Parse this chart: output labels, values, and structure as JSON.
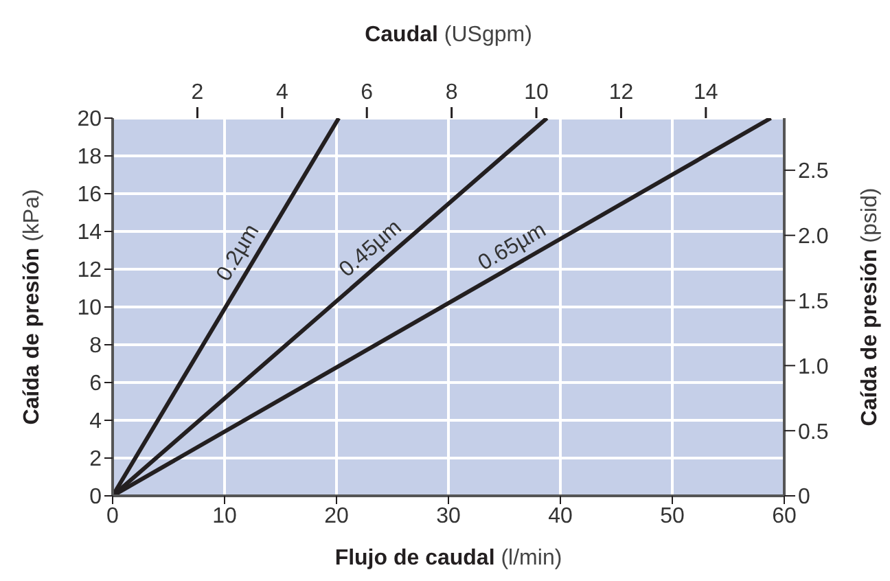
{
  "chart_data": {
    "type": "line",
    "xlabel": "Flujo de caudal (l/min)",
    "ylabel": "Caída de presión (kPa)",
    "y2label": "Caída de presión (psid)",
    "x2label": "Caudal (USgpm)",
    "series": [
      {
        "name": "0.2µm",
        "color": "#231f20",
        "x": [
          0,
          20.2
        ],
        "values": [
          0,
          20
        ]
      },
      {
        "name": "0.45µm",
        "color": "#231f20",
        "x": [
          0,
          38.8
        ],
        "values": [
          0,
          20
        ]
      },
      {
        "name": "0.65µm",
        "color": "#231f20",
        "x": [
          0,
          58.8
        ],
        "values": [
          0,
          20
        ]
      }
    ],
    "xlim": [
      0,
      60
    ],
    "xticks": [
      0,
      10,
      20,
      30,
      40,
      50,
      60
    ],
    "ylim": [
      0,
      20
    ],
    "yticks": [
      0,
      2,
      4,
      6,
      8,
      10,
      12,
      14,
      16,
      18,
      20
    ],
    "x2lim": [
      0,
      15.85
    ],
    "x2ticks": [
      2,
      4,
      6,
      8,
      10,
      12,
      14
    ],
    "y2lim": [
      0,
      2.9
    ],
    "y2ticks": [
      0,
      0.5,
      {
        "value": 1,
        "label": "1.0"
      },
      1.5,
      {
        "value": 2,
        "label": "2.0"
      },
      2.5
    ],
    "grid": true,
    "marker": "none",
    "line_style": "solid"
  }
}
